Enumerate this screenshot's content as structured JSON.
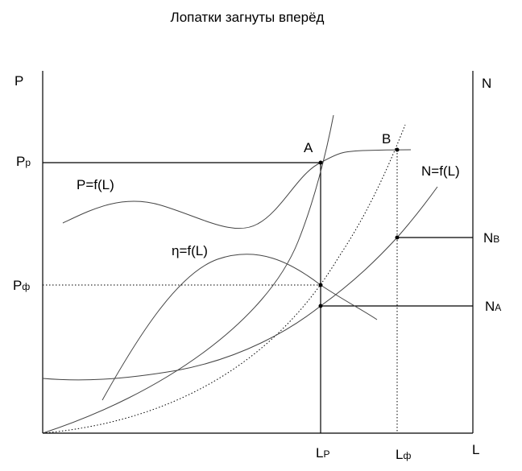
{
  "title": "Лопатки загнуты вперёд",
  "axes": {
    "left": "P",
    "right": "N",
    "bottom": "L"
  },
  "labels": {
    "p_r": {
      "main": "P",
      "sub": "р"
    },
    "p_f": {
      "main": "P",
      "sub": "ф"
    },
    "n_b": {
      "main": "N",
      "sub": "B"
    },
    "n_a": {
      "main": "N",
      "sub": "A"
    },
    "l_p": {
      "main": "L",
      "sub": "P"
    },
    "l_f": {
      "main": "L",
      "sub": "ф"
    },
    "point_a": "A",
    "point_b": "B"
  },
  "curves": {
    "pressure": "P=f(L)",
    "efficiency": "η=f(L)",
    "power": "N=f(L)"
  }
}
